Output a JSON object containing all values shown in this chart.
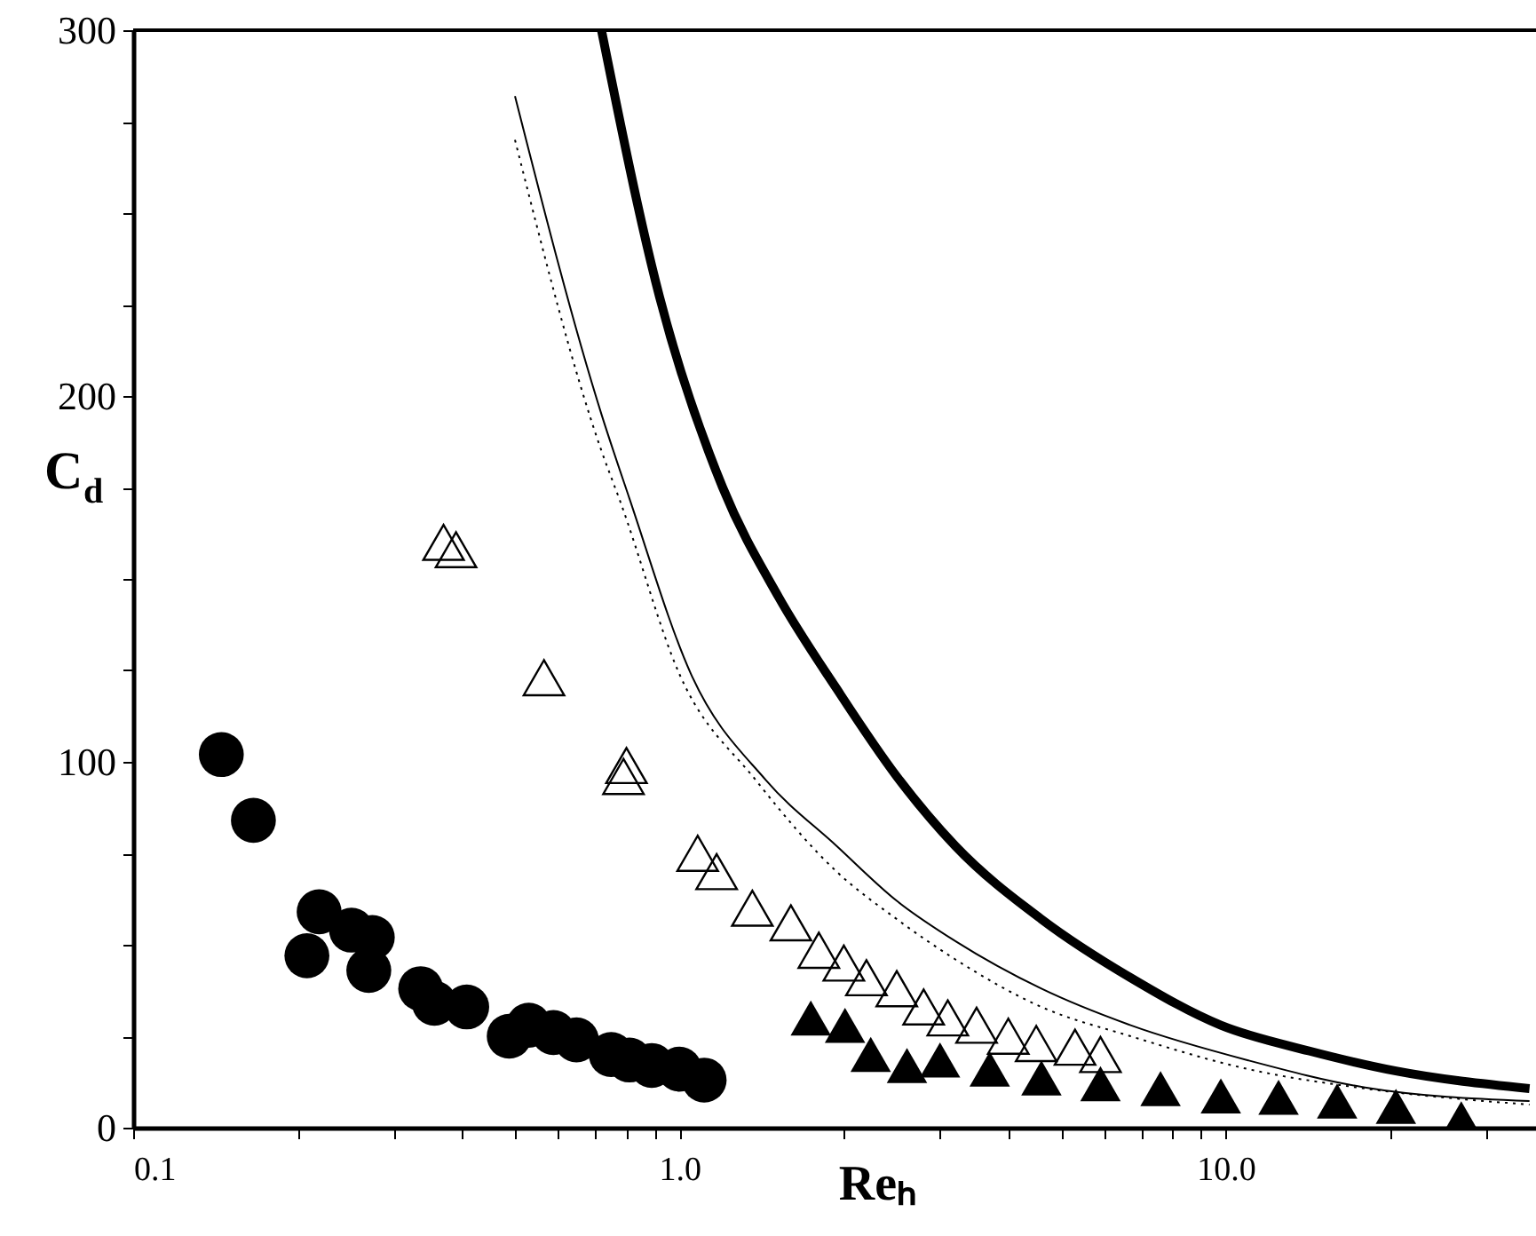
{
  "chart_data": {
    "type": "scatter",
    "xlabel": "Reₕ",
    "ylabel": "C$_{d}$",
    "log": "x",
    "xlim": [
      0.1,
      37
    ],
    "ylim": [
      0,
      300
    ],
    "xticks": [
      0.1,
      {
        "value": 0.2,
        "label": null
      },
      {
        "value": 0.3,
        "label": null
      },
      {
        "value": 0.4,
        "label": null
      },
      {
        "value": 0.5,
        "label": null
      },
      {
        "value": 0.6,
        "label": null
      },
      {
        "value": 0.7,
        "label": null
      },
      {
        "value": 0.8,
        "label": null
      },
      {
        "value": 0.9,
        "label": null
      },
      {
        "value": 1,
        "label": "1.0"
      },
      {
        "value": 2,
        "label": null
      },
      {
        "value": 3,
        "label": null
      },
      {
        "value": 4,
        "label": null
      },
      {
        "value": 5,
        "label": null
      },
      {
        "value": 6,
        "label": null
      },
      {
        "value": 7,
        "label": null
      },
      {
        "value": 8,
        "label": null
      },
      {
        "value": 9,
        "label": null
      },
      {
        "value": 10,
        "label": "10.0"
      },
      {
        "value": 20,
        "label": null
      },
      {
        "value": 30,
        "label": null
      }
    ],
    "yticks": [
      0,
      {
        "value": 25,
        "label": null
      },
      {
        "value": 50,
        "label": null
      },
      {
        "value": 75,
        "label": null
      },
      100,
      {
        "value": 125,
        "label": null
      },
      {
        "value": 150,
        "label": null
      },
      {
        "value": 175,
        "label": null
      },
      200,
      {
        "value": 225,
        "label": null
      },
      {
        "value": 250,
        "label": null
      },
      {
        "value": 275,
        "label": null
      },
      300
    ],
    "grid": false,
    "series": [
      {
        "marker": "circle",
        "color": "#000000",
        "x": [
          0.145,
          0.166,
          0.208,
          0.219,
          0.251,
          0.27,
          0.274,
          0.336,
          0.356,
          0.408,
          0.488,
          0.53,
          0.588,
          0.648,
          0.75,
          0.81,
          0.89,
          1.0,
          1.11
        ],
        "values": [
          102,
          84,
          47,
          59,
          54,
          43,
          52,
          38,
          34,
          33,
          25,
          28,
          26,
          24,
          20,
          18.5,
          17,
          16,
          13
        ]
      },
      {
        "marker": "triangle",
        "color": "#000000",
        "x": [
          0.37,
          0.39,
          0.565,
          0.79,
          0.8,
          1.08,
          1.17,
          1.36,
          1.6,
          1.8,
          2.0,
          2.2,
          2.5,
          2.8,
          3.1,
          3.5,
          4.0,
          4.5,
          5.3,
          5.9
        ],
        "values": [
          160,
          158,
          123,
          96,
          99,
          75,
          70,
          60,
          56,
          48.5,
          45,
          41,
          38,
          33,
          30,
          28,
          25,
          23,
          22,
          20
        ]
      },
      {
        "marker": "triangle",
        "color": "#000000",
        "x": [
          1.74,
          2.01,
          2.24,
          2.61,
          3.0,
          3.7,
          4.6,
          5.9,
          7.6,
          9.8,
          12.5,
          16,
          20.5,
          27
        ],
        "values": [
          30,
          28,
          20,
          17,
          18.5,
          16,
          13.6,
          12,
          10.7,
          8.7,
          8.3,
          7.3,
          5.8,
          2.4
        ]
      },
      {
        "type": "line",
        "marker": "none",
        "line_style": "solid",
        "color": "#000000",
        "x": [
          0.72,
          0.92,
          1.2,
          1.52,
          1.94,
          2.5,
          3.2,
          4.6,
          6.7,
          9.8,
          14.2,
          20.5,
          36
        ],
        "values": [
          300,
          227,
          175,
          145,
          120,
          96,
          77,
          57,
          41,
          28,
          21,
          15.5,
          10.7
        ]
      },
      {
        "type": "line",
        "marker": "none",
        "line_style": "solid",
        "color": "#000000",
        "x": [
          0.5,
          0.72,
          0.81,
          1.05,
          1.44,
          1.94,
          2.5,
          3.2,
          4.6,
          6.7,
          11,
          18,
          36
        ],
        "values": [
          282,
          195,
          172,
          124,
          95,
          77,
          62,
          51,
          38,
          28,
          18.4,
          11,
          7.3
        ]
      },
      {
        "type": "line",
        "marker": "none",
        "line_style": "dotted",
        "color": "#000000",
        "x": [
          0.5,
          0.72,
          0.78,
          1.0,
          1.38,
          1.94,
          2.5,
          3.2,
          4.6,
          6.7,
          11,
          18,
          36
        ],
        "values": [
          270,
          185,
          171,
          124,
          95,
          70,
          57,
          46,
          33,
          25,
          16,
          10.7,
          6.3
        ]
      }
    ]
  }
}
